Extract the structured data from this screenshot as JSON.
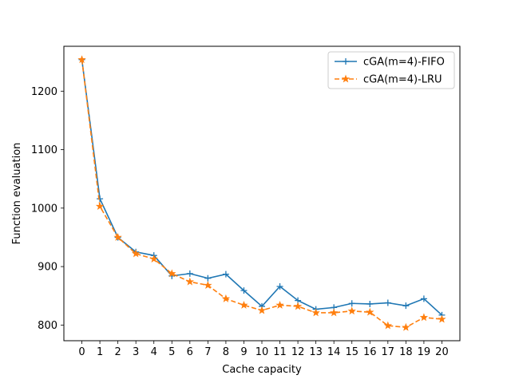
{
  "chart_data": {
    "type": "line",
    "title": "",
    "xlabel": "Cache capacity",
    "ylabel": "Function evaluation",
    "x": [
      0,
      1,
      2,
      3,
      4,
      5,
      6,
      7,
      8,
      9,
      10,
      11,
      12,
      13,
      14,
      15,
      16,
      17,
      18,
      19,
      20
    ],
    "xlim": [
      -1,
      21
    ],
    "ylim": [
      773.2,
      1276.8
    ],
    "yticks": [
      800,
      900,
      1000,
      1100,
      1200
    ],
    "grid": false,
    "legend_position": "top-right",
    "series": [
      {
        "name": "cGA(m=4)-FIFO",
        "color": "#1f77b4",
        "linestyle": "solid",
        "marker": "plus",
        "values": [
          1254,
          1016,
          950,
          925,
          919,
          884,
          888,
          880,
          887,
          859,
          832,
          866,
          842,
          827,
          830,
          837,
          836,
          838,
          833,
          845,
          817
        ]
      },
      {
        "name": "cGA(m=4)-LRU",
        "color": "#ff7f0e",
        "linestyle": "dashed",
        "marker": "star",
        "values": [
          1254,
          1003,
          950,
          922,
          913,
          888,
          874,
          868,
          845,
          834,
          825,
          834,
          832,
          821,
          821,
          824,
          822,
          799,
          796,
          813,
          810
        ]
      }
    ]
  }
}
